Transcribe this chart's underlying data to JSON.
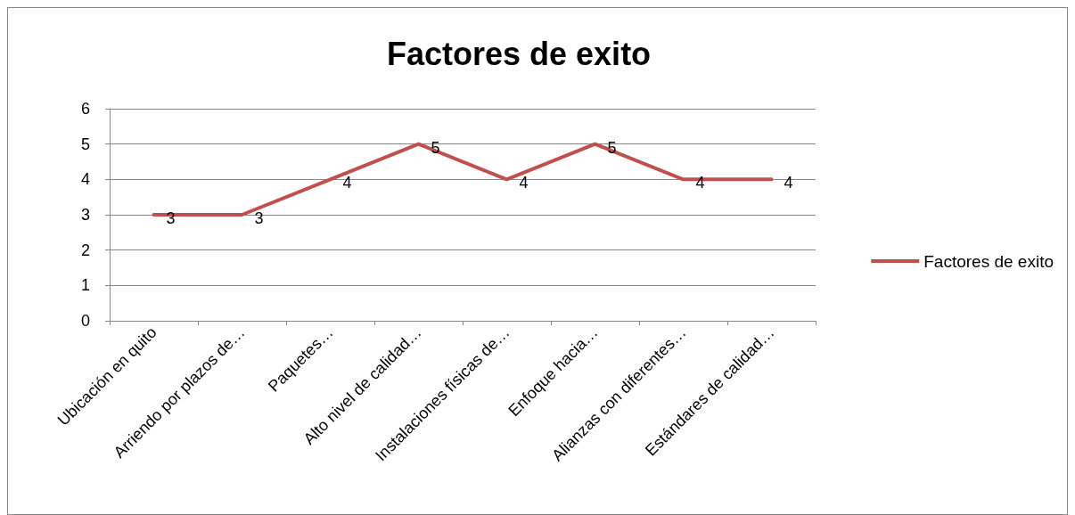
{
  "chart_data": {
    "type": "line",
    "title": "Factores de exito",
    "categories": [
      "Ubicación en quito",
      "Arriendo por plazos de…",
      "Paquetes…",
      "Alto nivel de calidad…",
      "Instalaciones físicas de…",
      "Enfoque hacia…",
      "Alianzas con diferentes…",
      "Estándares de calidad…"
    ],
    "series": [
      {
        "name": "Factores de exito",
        "color": "#c0504d",
        "values": [
          3,
          3,
          4,
          5,
          4,
          5,
          4,
          4
        ]
      }
    ],
    "ylim": [
      0,
      6
    ],
    "yticks": [
      0,
      1,
      2,
      3,
      4,
      5,
      6
    ],
    "grid": "y",
    "legend": "right",
    "data_labels": true,
    "marker": "none",
    "line_style": "solid"
  }
}
